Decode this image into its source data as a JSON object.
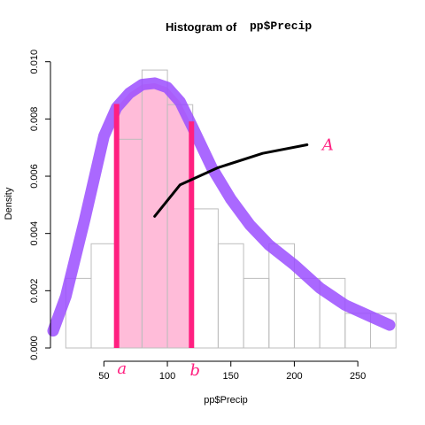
{
  "chart_data": {
    "type": "histogram",
    "title_prefix": "Histogram of ",
    "title_var": "pp$Precip",
    "xlabel": "pp$Precip",
    "ylabel": "Density",
    "xlim": [
      10,
      282
    ],
    "ylim": [
      0,
      0.0103
    ],
    "x_ticks": [
      50,
      100,
      150,
      200,
      250
    ],
    "y_ticks": [
      "0.000",
      "0.002",
      "0.004",
      "0.006",
      "0.008",
      "0.010"
    ],
    "bins": [
      {
        "from": 20,
        "to": 40,
        "density": 0.00243
      },
      {
        "from": 40,
        "to": 60,
        "density": 0.00364
      },
      {
        "from": 60,
        "to": 80,
        "density": 0.00729
      },
      {
        "from": 80,
        "to": 100,
        "density": 0.00971
      },
      {
        "from": 100,
        "to": 120,
        "density": 0.0085
      },
      {
        "from": 120,
        "to": 140,
        "density": 0.00486
      },
      {
        "from": 140,
        "to": 160,
        "density": 0.00364
      },
      {
        "from": 160,
        "to": 180,
        "density": 0.00243
      },
      {
        "from": 180,
        "to": 200,
        "density": 0.00364
      },
      {
        "from": 200,
        "to": 220,
        "density": 0.00243
      },
      {
        "from": 220,
        "to": 240,
        "density": 0.00243
      },
      {
        "from": 240,
        "to": 260,
        "density": 0.00121
      },
      {
        "from": 260,
        "to": 280,
        "density": 0.00121
      }
    ],
    "density_curve": {
      "color": "#9b4dff",
      "points": [
        [
          10,
          0.0006
        ],
        [
          20,
          0.0018
        ],
        [
          35,
          0.0045
        ],
        [
          50,
          0.0074
        ],
        [
          60,
          0.0084
        ],
        [
          70,
          0.0089
        ],
        [
          80,
          0.0092
        ],
        [
          90,
          0.00925
        ],
        [
          100,
          0.0091
        ],
        [
          110,
          0.0086
        ],
        [
          120,
          0.0077
        ],
        [
          135,
          0.0063
        ],
        [
          150,
          0.0052
        ],
        [
          165,
          0.0043
        ],
        [
          180,
          0.0036
        ],
        [
          200,
          0.0029
        ],
        [
          220,
          0.0021
        ],
        [
          240,
          0.0015
        ],
        [
          260,
          0.0011
        ],
        [
          275,
          0.0008
        ]
      ]
    },
    "shaded_region": {
      "color": "#ffbcd9",
      "from": 60,
      "to": 119,
      "boundary_color": "#ff2080",
      "label_a": "a",
      "label_b": "b"
    },
    "annotation": {
      "label": "A",
      "color": "#ff2080",
      "arrow_points": [
        [
          90,
          0.0046
        ],
        [
          110,
          0.0057
        ],
        [
          140,
          0.0063
        ],
        [
          175,
          0.0068
        ],
        [
          210,
          0.0071
        ]
      ],
      "label_at": [
        215,
        0.0071
      ]
    }
  }
}
